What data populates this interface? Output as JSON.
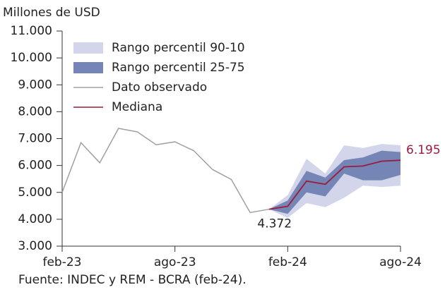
{
  "chart_data": {
    "type": "band-line",
    "y_label": "Millones de USD",
    "source": "Fuente: INDEC y REM - BCRA (feb-24).",
    "categories": [
      "feb-23",
      null,
      null,
      null,
      null,
      null,
      "ago-23",
      null,
      null,
      null,
      null,
      null,
      "feb-24",
      null,
      null,
      null,
      null,
      null,
      "ago-24"
    ],
    "ylim": [
      3000,
      11000
    ],
    "yticks": [
      {
        "value": 3000,
        "label": "3.000"
      },
      {
        "value": 4000,
        "label": "4.000"
      },
      {
        "value": 5000,
        "label": "5.000"
      },
      {
        "value": 6000,
        "label": "6.000"
      },
      {
        "value": 7000,
        "label": "7.000"
      },
      {
        "value": 8000,
        "label": "8.000"
      },
      {
        "value": 9000,
        "label": "9.000"
      },
      {
        "value": 10000,
        "label": "10.000"
      },
      {
        "value": 11000,
        "label": "11.000"
      }
    ],
    "bands": [
      {
        "name": "Rango percentil 90-10",
        "color": "#d3d6ea",
        "low": [
          null,
          null,
          null,
          null,
          null,
          null,
          null,
          null,
          null,
          null,
          null,
          4372,
          4050,
          4600,
          4450,
          4800,
          5250,
          5200,
          5250
        ],
        "high": [
          null,
          null,
          null,
          null,
          null,
          null,
          null,
          null,
          null,
          null,
          null,
          4372,
          4900,
          6250,
          5700,
          6750,
          6650,
          6800,
          6750
        ]
      },
      {
        "name": "Rango percentil 25-75",
        "color": "#7585b5",
        "low": [
          null,
          null,
          null,
          null,
          null,
          null,
          null,
          null,
          null,
          null,
          null,
          4372,
          4200,
          5000,
          4850,
          5700,
          5450,
          5450,
          5650
        ],
        "high": [
          null,
          null,
          null,
          null,
          null,
          null,
          null,
          null,
          null,
          null,
          null,
          4372,
          4700,
          5800,
          5550,
          6200,
          6300,
          6550,
          6500
        ]
      }
    ],
    "series": [
      {
        "name": "Dato observado",
        "color": "#a0a0a0",
        "values": [
          5000,
          6850,
          6100,
          7380,
          7250,
          6770,
          6880,
          6550,
          5850,
          5480,
          4250,
          4372,
          null,
          null,
          null,
          null,
          null,
          null,
          null
        ]
      },
      {
        "name": "Mediana",
        "color": "#9b1c3c",
        "values": [
          null,
          null,
          null,
          null,
          null,
          null,
          null,
          null,
          null,
          null,
          null,
          4372,
          4480,
          5420,
          5300,
          5950,
          5980,
          6160,
          6195
        ],
        "value_labels": [
          null,
          null,
          null,
          null,
          null,
          null,
          null,
          null,
          null,
          null,
          null,
          "4.372",
          null,
          null,
          null,
          null,
          null,
          null,
          "6.195"
        ]
      }
    ]
  }
}
